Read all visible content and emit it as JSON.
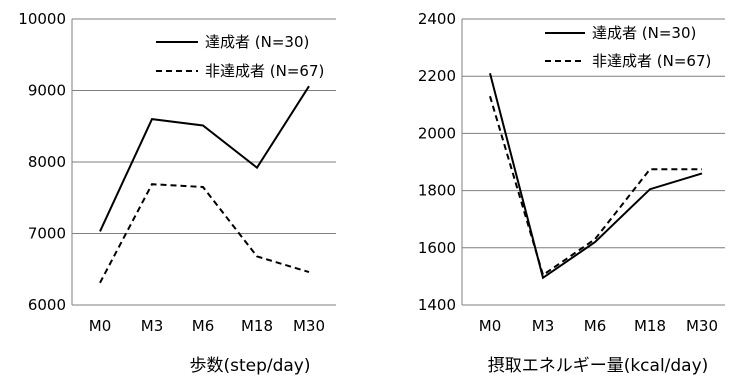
{
  "chart_data": [
    {
      "type": "line",
      "xlabel": "歩数(step/day)",
      "ylabel": "",
      "categories": [
        "M0",
        "M3",
        "M6",
        "M18",
        "M30"
      ],
      "ylim": [
        6000,
        10000
      ],
      "yticks": [
        6000,
        7000,
        8000,
        9000,
        10000
      ],
      "grid": true,
      "legend_position": "top-right",
      "series": [
        {
          "name": "達成者 (N=30)",
          "style": "solid",
          "color": "#000000",
          "values": [
            7030,
            8600,
            8510,
            7920,
            9060
          ]
        },
        {
          "name": "非達成者 (N=67)",
          "style": "dashed",
          "color": "#000000",
          "values": [
            6310,
            7690,
            7650,
            6680,
            6460
          ]
        }
      ]
    },
    {
      "type": "line",
      "xlabel": "摂取エネルギー量(kcal/day)",
      "ylabel": "",
      "categories": [
        "M0",
        "M3",
        "M6",
        "M18",
        "M30"
      ],
      "ylim": [
        1400,
        2400
      ],
      "yticks": [
        1400,
        1600,
        1800,
        2000,
        2200,
        2400
      ],
      "grid": true,
      "legend_position": "top-right",
      "series": [
        {
          "name": "達成者 (N=30)",
          "style": "solid",
          "color": "#000000",
          "values": [
            2210,
            1495,
            1620,
            1805,
            1860
          ]
        },
        {
          "name": "非達成者 (N=67)",
          "style": "dashed",
          "color": "#000000",
          "values": [
            2130,
            1505,
            1630,
            1875,
            1875
          ]
        }
      ]
    }
  ]
}
